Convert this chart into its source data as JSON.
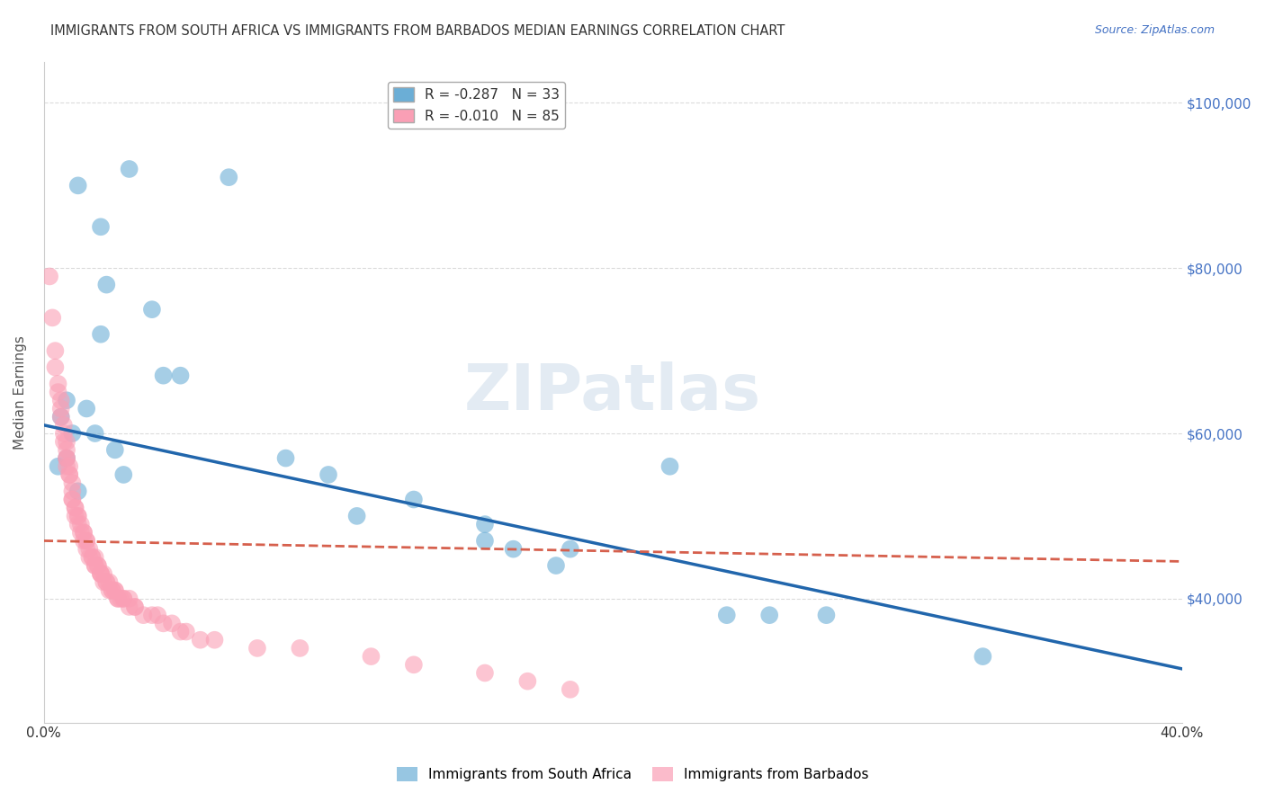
{
  "title": "IMMIGRANTS FROM SOUTH AFRICA VS IMMIGRANTS FROM BARBADOS MEDIAN EARNINGS CORRELATION CHART",
  "source": "Source: ZipAtlas.com",
  "xlabel_label": "",
  "ylabel_label": "Median Earnings",
  "x_min": 0.0,
  "x_max": 0.4,
  "y_min": 25000,
  "y_max": 105000,
  "x_ticks": [
    0.0,
    0.05,
    0.1,
    0.15,
    0.2,
    0.25,
    0.3,
    0.35,
    0.4
  ],
  "x_tick_labels": [
    "0.0%",
    "",
    "",
    "",
    "",
    "",
    "",
    "",
    "40.0%"
  ],
  "y_ticks": [
    40000,
    60000,
    80000,
    100000
  ],
  "y_tick_labels": [
    "$40,000",
    "$60,000",
    "$80,000",
    "$100,000"
  ],
  "watermark": "ZIPatlas",
  "blue_color": "#6baed6",
  "pink_color": "#fa9fb5",
  "blue_line_color": "#2166ac",
  "pink_line_color": "#d6604d",
  "legend_blue_R": "-0.287",
  "legend_blue_N": "33",
  "legend_pink_R": "-0.010",
  "legend_pink_N": "85",
  "blue_scatter_x": [
    0.012,
    0.03,
    0.02,
    0.065,
    0.022,
    0.038,
    0.02,
    0.048,
    0.008,
    0.015,
    0.006,
    0.01,
    0.018,
    0.025,
    0.008,
    0.005,
    0.028,
    0.012,
    0.042,
    0.085,
    0.1,
    0.13,
    0.11,
    0.155,
    0.155,
    0.165,
    0.18,
    0.185,
    0.22,
    0.24,
    0.255,
    0.275,
    0.33
  ],
  "blue_scatter_y": [
    90000,
    92000,
    85000,
    91000,
    78000,
    75000,
    72000,
    67000,
    64000,
    63000,
    62000,
    60000,
    60000,
    58000,
    57000,
    56000,
    55000,
    53000,
    67000,
    57000,
    55000,
    52000,
    50000,
    49000,
    47000,
    46000,
    44000,
    46000,
    56000,
    38000,
    38000,
    38000,
    33000
  ],
  "pink_scatter_x": [
    0.002,
    0.003,
    0.004,
    0.004,
    0.005,
    0.005,
    0.006,
    0.006,
    0.006,
    0.007,
    0.007,
    0.007,
    0.008,
    0.008,
    0.008,
    0.008,
    0.008,
    0.009,
    0.009,
    0.009,
    0.01,
    0.01,
    0.01,
    0.01,
    0.011,
    0.011,
    0.011,
    0.012,
    0.012,
    0.012,
    0.013,
    0.013,
    0.014,
    0.014,
    0.014,
    0.015,
    0.015,
    0.015,
    0.016,
    0.016,
    0.017,
    0.017,
    0.018,
    0.018,
    0.018,
    0.019,
    0.019,
    0.02,
    0.02,
    0.02,
    0.021,
    0.021,
    0.022,
    0.022,
    0.023,
    0.023,
    0.024,
    0.024,
    0.025,
    0.025,
    0.026,
    0.026,
    0.027,
    0.028,
    0.028,
    0.03,
    0.03,
    0.032,
    0.032,
    0.035,
    0.038,
    0.04,
    0.042,
    0.045,
    0.048,
    0.05,
    0.055,
    0.06,
    0.075,
    0.09,
    0.115,
    0.13,
    0.155,
    0.17,
    0.185
  ],
  "pink_scatter_y": [
    79000,
    74000,
    70000,
    68000,
    66000,
    65000,
    64000,
    63000,
    62000,
    61000,
    60000,
    59000,
    59000,
    58000,
    57000,
    57000,
    56000,
    56000,
    55000,
    55000,
    54000,
    53000,
    52000,
    52000,
    51000,
    51000,
    50000,
    50000,
    50000,
    49000,
    49000,
    48000,
    48000,
    48000,
    47000,
    47000,
    47000,
    46000,
    46000,
    45000,
    45000,
    45000,
    45000,
    44000,
    44000,
    44000,
    44000,
    43000,
    43000,
    43000,
    43000,
    42000,
    42000,
    42000,
    42000,
    41000,
    41000,
    41000,
    41000,
    41000,
    40000,
    40000,
    40000,
    40000,
    40000,
    40000,
    39000,
    39000,
    39000,
    38000,
    38000,
    38000,
    37000,
    37000,
    36000,
    36000,
    35000,
    35000,
    34000,
    34000,
    33000,
    32000,
    31000,
    30000,
    29000
  ],
  "blue_line_x0": 0.0,
  "blue_line_y0": 61000,
  "blue_line_x1": 0.4,
  "blue_line_y1": 31500,
  "pink_line_x0": 0.0,
  "pink_line_y0": 47000,
  "pink_line_x1": 0.4,
  "pink_line_y1": 44500,
  "background_color": "#ffffff",
  "grid_color": "#cccccc",
  "title_fontsize": 11,
  "axis_tick_color": "#4472c4",
  "ylabel_color": "#555555"
}
